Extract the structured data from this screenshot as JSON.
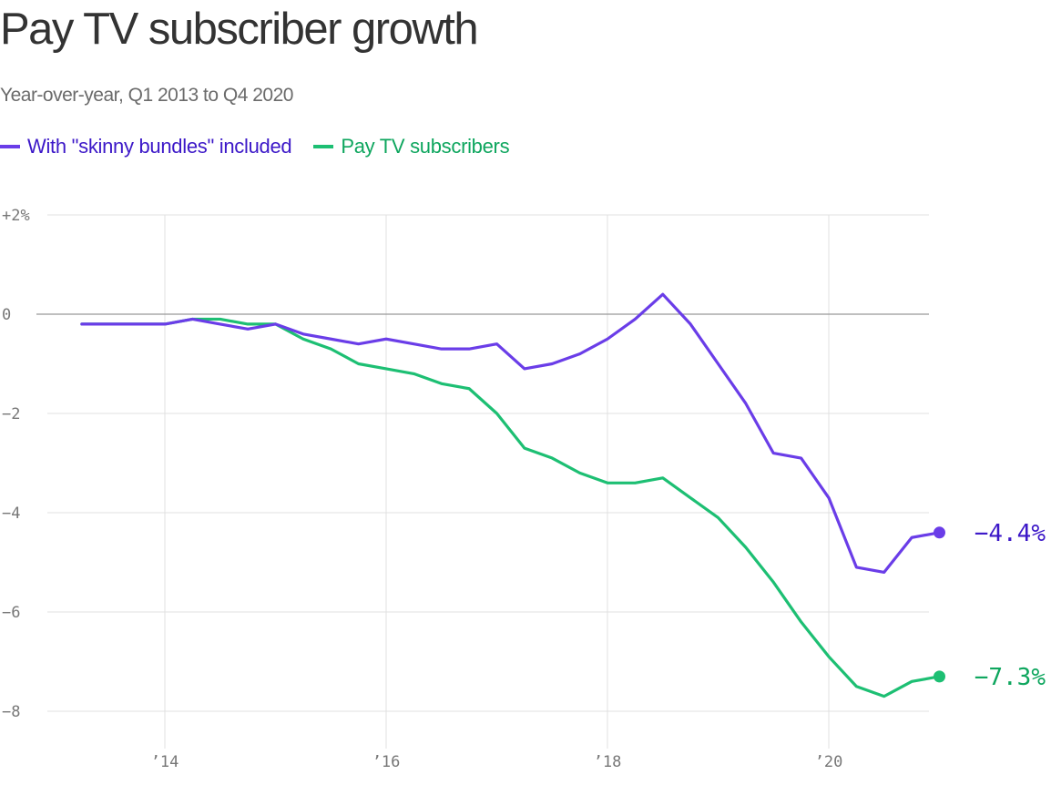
{
  "colors": {
    "bundles_line": "#6a3de8",
    "bundles_text": "#3c18c8",
    "paytv_line": "#1dbf73",
    "paytv_text": "#0ea65e",
    "grid": "#e1e1e1",
    "zero": "#999999",
    "title": "#333333"
  },
  "chart_data": {
    "type": "line",
    "title": "Pay TV subscriber growth",
    "subtitle": "Year-over-year, Q1 2013 to Q4 2020",
    "xlabel": "",
    "ylabel": "",
    "ylim": [
      -8,
      2
    ],
    "y_ticks": [
      {
        "value": 2,
        "label": "+2%"
      },
      {
        "value": 0,
        "label": "0"
      },
      {
        "value": -2,
        "label": "−2"
      },
      {
        "value": -4,
        "label": "−4"
      },
      {
        "value": -6,
        "label": "−6"
      },
      {
        "value": -8,
        "label": "−8"
      }
    ],
    "x_ticks": [
      {
        "value": 2014,
        "label": "’14"
      },
      {
        "value": 2016,
        "label": "’16"
      },
      {
        "value": 2018,
        "label": "’18"
      },
      {
        "value": 2020,
        "label": "’20"
      }
    ],
    "x": [
      2013.0,
      2013.25,
      2013.5,
      2013.75,
      2014.0,
      2014.25,
      2014.5,
      2014.75,
      2015.0,
      2015.25,
      2015.5,
      2015.75,
      2016.0,
      2016.25,
      2016.5,
      2016.75,
      2017.0,
      2017.25,
      2017.5,
      2017.75,
      2018.0,
      2018.25,
      2018.5,
      2018.75,
      2019.0,
      2019.25,
      2019.5,
      2019.75,
      2020.0,
      2020.25,
      2020.5,
      2020.75
    ],
    "grid": true,
    "legend_position": "top-left",
    "series": [
      {
        "name": "With \"skinny bundles\" included",
        "color_key": "bundles",
        "values": [
          -0.2,
          -0.2,
          -0.2,
          -0.2,
          -0.1,
          -0.2,
          -0.3,
          -0.2,
          -0.4,
          -0.5,
          -0.6,
          -0.5,
          -0.6,
          -0.7,
          -0.7,
          -0.6,
          -1.1,
          -1.0,
          -0.8,
          -0.5,
          -0.1,
          0.4,
          -0.2,
          -1.0,
          -1.8,
          -2.8,
          -2.9,
          -3.7,
          -5.1,
          -5.2,
          -4.5,
          -4.4
        ],
        "end_label": "−4.4%"
      },
      {
        "name": "Pay TV subscribers",
        "color_key": "paytv",
        "values": [
          -0.2,
          -0.2,
          -0.2,
          -0.2,
          -0.1,
          -0.1,
          -0.2,
          -0.2,
          -0.5,
          -0.7,
          -1.0,
          -1.1,
          -1.2,
          -1.4,
          -1.5,
          -2.0,
          -2.7,
          -2.9,
          -3.2,
          -3.4,
          -3.4,
          -3.3,
          -3.7,
          -4.1,
          -4.7,
          -5.4,
          -6.2,
          -6.9,
          -7.5,
          -7.7,
          -7.4,
          -7.3
        ],
        "end_label": "−7.3%"
      }
    ]
  }
}
